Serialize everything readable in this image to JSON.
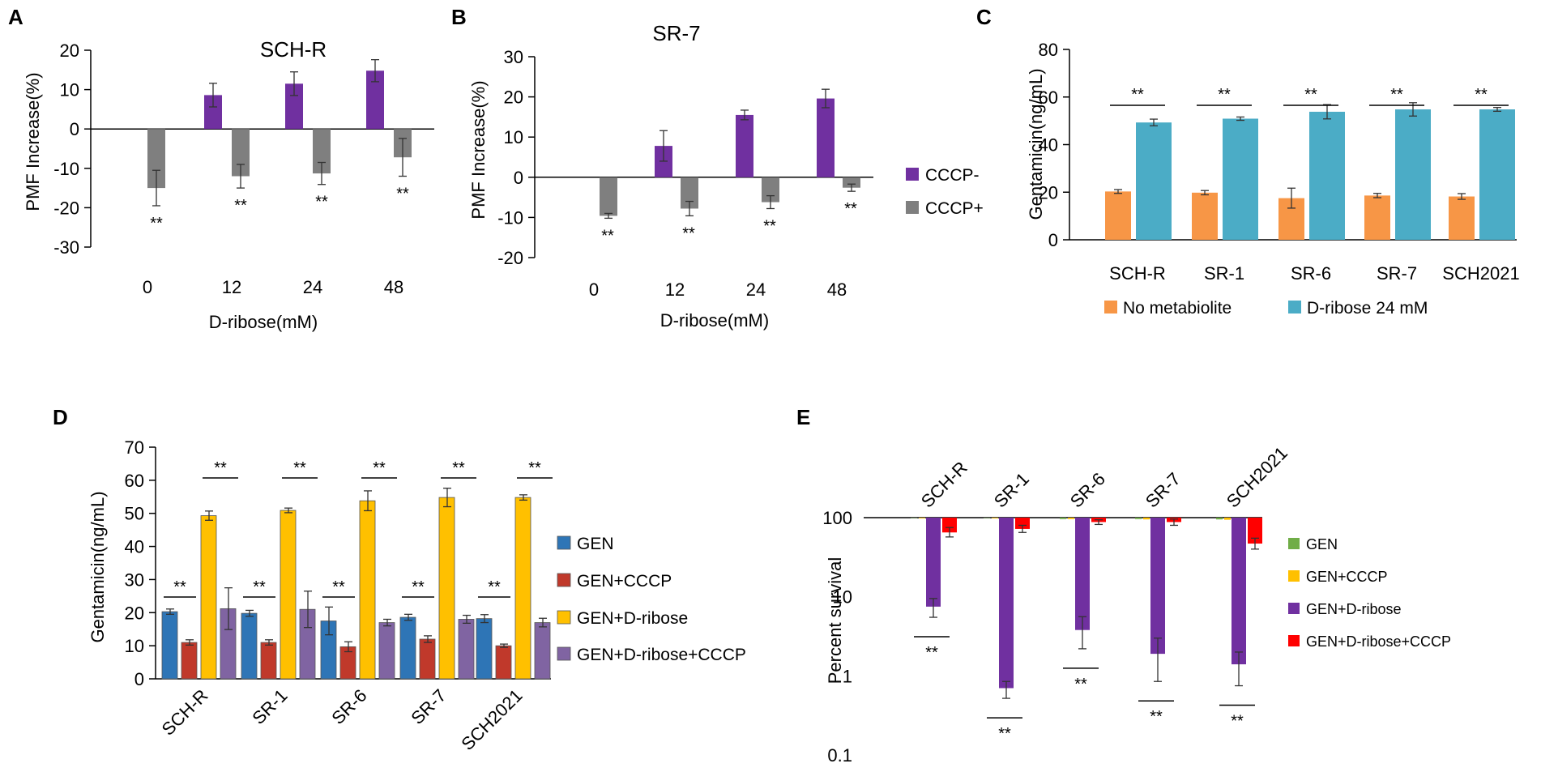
{
  "colors": {
    "purple": "#7030A0",
    "gray": "#7f7f7f",
    "orange": "#f79646",
    "teal": "#4bacc6",
    "blue": "#2e75b6",
    "red": "#c0392b",
    "yellow": "#ffc000",
    "lavender": "#8064a2",
    "green": "#70ad47",
    "bright_red": "#ff0000",
    "bright_purple": "#7030a0"
  },
  "chart_data": [
    {
      "panel": "A",
      "type": "bar",
      "title": "SCH-R",
      "xlabel": "D-ribose(mM)",
      "ylabel": "PMF Increase(%)",
      "ylim": [
        -30,
        20
      ],
      "yticks": [
        "20",
        "10",
        "0",
        "-10",
        "-20",
        "-30"
      ],
      "categories": [
        "0",
        "12",
        "24",
        "48"
      ],
      "series": [
        {
          "name": "CCCP-",
          "values": [
            0,
            8.6,
            11.5,
            14.8
          ],
          "errors": [
            0,
            3,
            3,
            2.8
          ]
        },
        {
          "name": "CCCP+",
          "values": [
            -15,
            -12,
            -11.3,
            -7.2
          ],
          "errors": [
            4.5,
            3,
            2.8,
            4.8
          ]
        }
      ],
      "significance": [
        "**",
        "**",
        "**",
        "**"
      ]
    },
    {
      "panel": "B",
      "type": "bar",
      "title": "SR-7",
      "xlabel": "D-ribose(mM)",
      "ylabel": "PMF Increase(%)",
      "ylim": [
        -20,
        30
      ],
      "yticks": [
        "30",
        "20",
        "10",
        "0",
        "-10",
        "-20"
      ],
      "categories": [
        "0",
        "12",
        "24",
        "48"
      ],
      "series": [
        {
          "name": "CCCP-",
          "values": [
            0,
            7.8,
            15.5,
            19.6
          ],
          "errors": [
            0,
            3.8,
            1.2,
            2.3
          ]
        },
        {
          "name": "CCCP+",
          "values": [
            -9.6,
            -7.8,
            -6.2,
            -2.6
          ],
          "errors": [
            0.6,
            1.8,
            1.6,
            0.9
          ]
        }
      ],
      "legend": [
        "CCCP-",
        "CCCP+"
      ],
      "significance": [
        "**",
        "**",
        "**",
        "**"
      ]
    },
    {
      "panel": "C",
      "type": "bar",
      "xlabel": "",
      "ylabel": "Gentamicin(ng/mL)",
      "ylim": [
        0,
        80
      ],
      "yticks": [
        "80",
        "60",
        "40",
        "20",
        "0"
      ],
      "categories": [
        "SCH-R",
        "SR-1",
        "SR-6",
        "SR-7",
        "SCH2021"
      ],
      "series": [
        {
          "name": "No metabiolite",
          "values": [
            20.3,
            19.8,
            17.5,
            18.6,
            18.2
          ],
          "errors": [
            0.8,
            0.9,
            4.2,
            0.9,
            1.2
          ]
        },
        {
          "name": "D-ribose 24 mM",
          "values": [
            49.3,
            50.9,
            53.8,
            54.8,
            54.8
          ],
          "errors": [
            1.4,
            0.7,
            3.0,
            2.8,
            0.8
          ]
        }
      ],
      "legend": [
        "No metabiolite",
        "D-ribose 24 mM"
      ],
      "significance": [
        "**",
        "**",
        "**",
        "**",
        "**"
      ]
    },
    {
      "panel": "D",
      "type": "bar",
      "xlabel": "",
      "ylabel": "Gentamicin(ng/mL)",
      "ylim": [
        0,
        70
      ],
      "yticks": [
        "70",
        "60",
        "50",
        "40",
        "30",
        "20",
        "10",
        "0"
      ],
      "categories": [
        "SCH-R",
        "SR-1",
        "SR-6",
        "SR-7",
        "SCH2021"
      ],
      "series": [
        {
          "name": "GEN",
          "values": [
            20.3,
            19.8,
            17.5,
            18.6,
            18.2
          ],
          "errors": [
            0.8,
            0.9,
            4.2,
            0.9,
            1.2
          ]
        },
        {
          "name": "GEN+CCCP",
          "values": [
            11.0,
            11.0,
            9.7,
            12.0,
            10.0
          ],
          "errors": [
            0.8,
            0.8,
            1.5,
            1.0,
            0.5
          ]
        },
        {
          "name": "GEN+D-ribose",
          "values": [
            49.3,
            50.9,
            53.8,
            54.8,
            54.8
          ],
          "errors": [
            1.4,
            0.7,
            3.0,
            2.8,
            0.8
          ]
        },
        {
          "name": "GEN+D-ribose+CCCP",
          "values": [
            21.2,
            21.0,
            17.0,
            18.0,
            17.0
          ],
          "errors": [
            6.3,
            5.5,
            1.0,
            1.2,
            1.3
          ]
        }
      ],
      "legend": [
        "GEN",
        "GEN+CCCP",
        "GEN+D-ribose",
        "GEN+D-ribose+CCCP"
      ],
      "significance": [
        "**",
        "**",
        "**",
        "**",
        "**",
        "**",
        "**",
        "**",
        "**",
        "**"
      ]
    },
    {
      "panel": "E",
      "type": "bar",
      "scale": "log",
      "xlabel": "",
      "ylabel": "Percent survival",
      "ylim": [
        0.1,
        100
      ],
      "yticks": [
        "100",
        "10",
        "1",
        "0.1"
      ],
      "categories": [
        "SCH-R",
        "SR-1",
        "SR-6",
        "SR-7",
        "SCH2021"
      ],
      "series": [
        {
          "name": "GEN",
          "values": [
            99,
            99,
            96,
            96,
            95
          ]
        },
        {
          "name": "GEN+CCCP",
          "values": [
            98,
            98,
            96,
            95,
            94
          ]
        },
        {
          "name": "GEN+D-ribose",
          "values": [
            7.5,
            0.7,
            3.8,
            1.9,
            1.4
          ],
          "errors_low": [
            5.5,
            0.52,
            2.2,
            0.85,
            0.75
          ],
          "errors_high": [
            9.5,
            0.85,
            5.6,
            3.0,
            2.0
          ]
        },
        {
          "name": "GEN+D-ribose+CCCP",
          "values": [
            65,
            72,
            88,
            88,
            47
          ],
          "errors_low": [
            57,
            65,
            82,
            80,
            40
          ],
          "errors_high": [
            75,
            80,
            94,
            96,
            55
          ]
        }
      ],
      "legend": [
        "GEN",
        "GEN+CCCP",
        "GEN+D-ribose",
        "GEN+D-ribose+CCCP"
      ],
      "significance": [
        "**",
        "**",
        "**",
        "**",
        "**"
      ]
    }
  ]
}
